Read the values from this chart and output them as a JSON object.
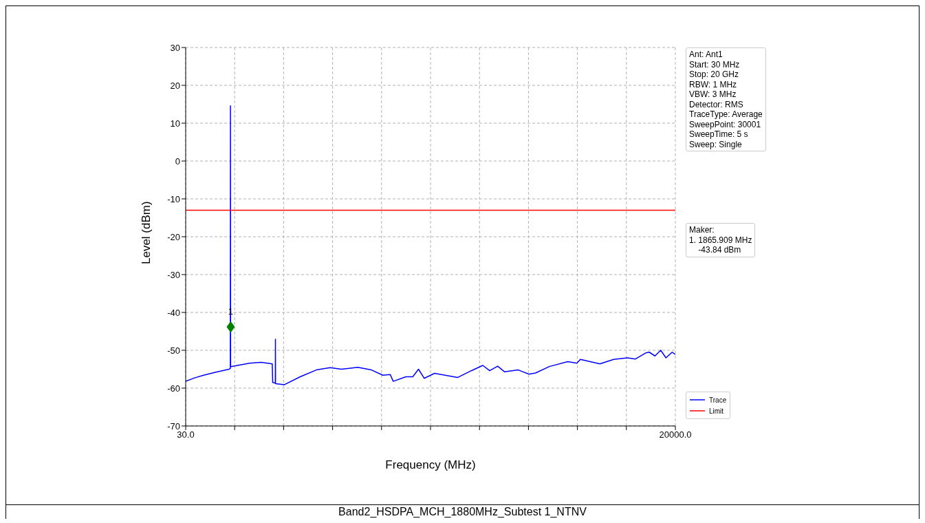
{
  "chart_data": {
    "type": "line",
    "xlabel": "Frequency (MHz)",
    "ylabel": "Level (dBm)",
    "xlim": [
      30,
      20000
    ],
    "ylim": [
      -70,
      30
    ],
    "xticks": [
      {
        "value": 30,
        "label": "30.0"
      },
      {
        "value": 2027,
        "label": null
      },
      {
        "value": 4024,
        "label": null
      },
      {
        "value": 6021,
        "label": null
      },
      {
        "value": 8018,
        "label": null
      },
      {
        "value": 10015,
        "label": null
      },
      {
        "value": 12012,
        "label": null
      },
      {
        "value": 14009,
        "label": null
      },
      {
        "value": 16006,
        "label": null
      },
      {
        "value": 18003,
        "label": null
      },
      {
        "value": 20000,
        "label": "20000.0"
      }
    ],
    "yticks": [
      -70,
      -60,
      -50,
      -40,
      -30,
      -20,
      -10,
      0,
      10,
      20,
      30
    ],
    "grid": true,
    "legend": "bottom right",
    "line_style": "solid",
    "series": [
      {
        "name": "Trace",
        "color": "#0000ff",
        "x": [
          30,
          395,
          760,
          1238,
          1800,
          1850,
          1856,
          1862,
          1875,
          2642,
          3111,
          3561,
          3578,
          3685,
          3690,
          3695,
          4047,
          4700,
          5358,
          5920,
          6378,
          7044,
          7606,
          8072,
          8373,
          8494,
          9010,
          9291,
          9525,
          9758,
          10179,
          11117,
          11679,
          12146,
          12427,
          12755,
          13036,
          13598,
          14019,
          14300,
          14862,
          15611,
          15985,
          16126,
          16922,
          17484,
          18045,
          18373,
          18794,
          18935,
          19168,
          19403,
          19617,
          19870,
          20000
        ],
        "values": [
          -58.2,
          -57.3,
          -56.6,
          -55.8,
          -55.0,
          -54.8,
          14.6,
          -54.3,
          -54.3,
          -53.4,
          -53.2,
          -53.6,
          -58.5,
          -58.7,
          -47.1,
          -58.8,
          -59.1,
          -57.0,
          -55.2,
          -54.6,
          -55.0,
          -54.5,
          -55.2,
          -56.6,
          -56.4,
          -58.2,
          -57.0,
          -57.0,
          -55.0,
          -57.4,
          -56.1,
          -57.2,
          -55.4,
          -54.0,
          -55.4,
          -54.2,
          -55.7,
          -55.2,
          -56.3,
          -56.0,
          -54.3,
          -53.0,
          -53.4,
          -52.4,
          -53.6,
          -52.4,
          -52.0,
          -52.3,
          -50.7,
          -50.5,
          -51.5,
          -50.0,
          -52.0,
          -50.5,
          -51.1
        ]
      },
      {
        "name": "Limit",
        "color": "#ff0000",
        "x": [
          30,
          20000
        ],
        "values": [
          -13,
          -13
        ]
      },
      {
        "type": "scatter",
        "marker": "diamond",
        "color": "#008000",
        "x": [
          1865.909
        ],
        "values": [
          -43.84
        ]
      }
    ],
    "annotations": [
      "Ant: Ant1\nStart: 30 MHz\nStop: 20 GHz\nRBW: 1 MHz\nVBW: 3 MHz\nDetector: RMS\nTraceType: Average\nSweepPoint: 30001\nSweepTime: 5 s\nSweep: Single",
      "Maker:\n1. 1865.909 MHz\n    -43.84 dBm",
      "Band2_HSDPA_MCH_1880MHz_Subtest 1_NTNV",
      {
        "text": "1",
        "x": 1865.909,
        "y": -43.84
      }
    ]
  }
}
